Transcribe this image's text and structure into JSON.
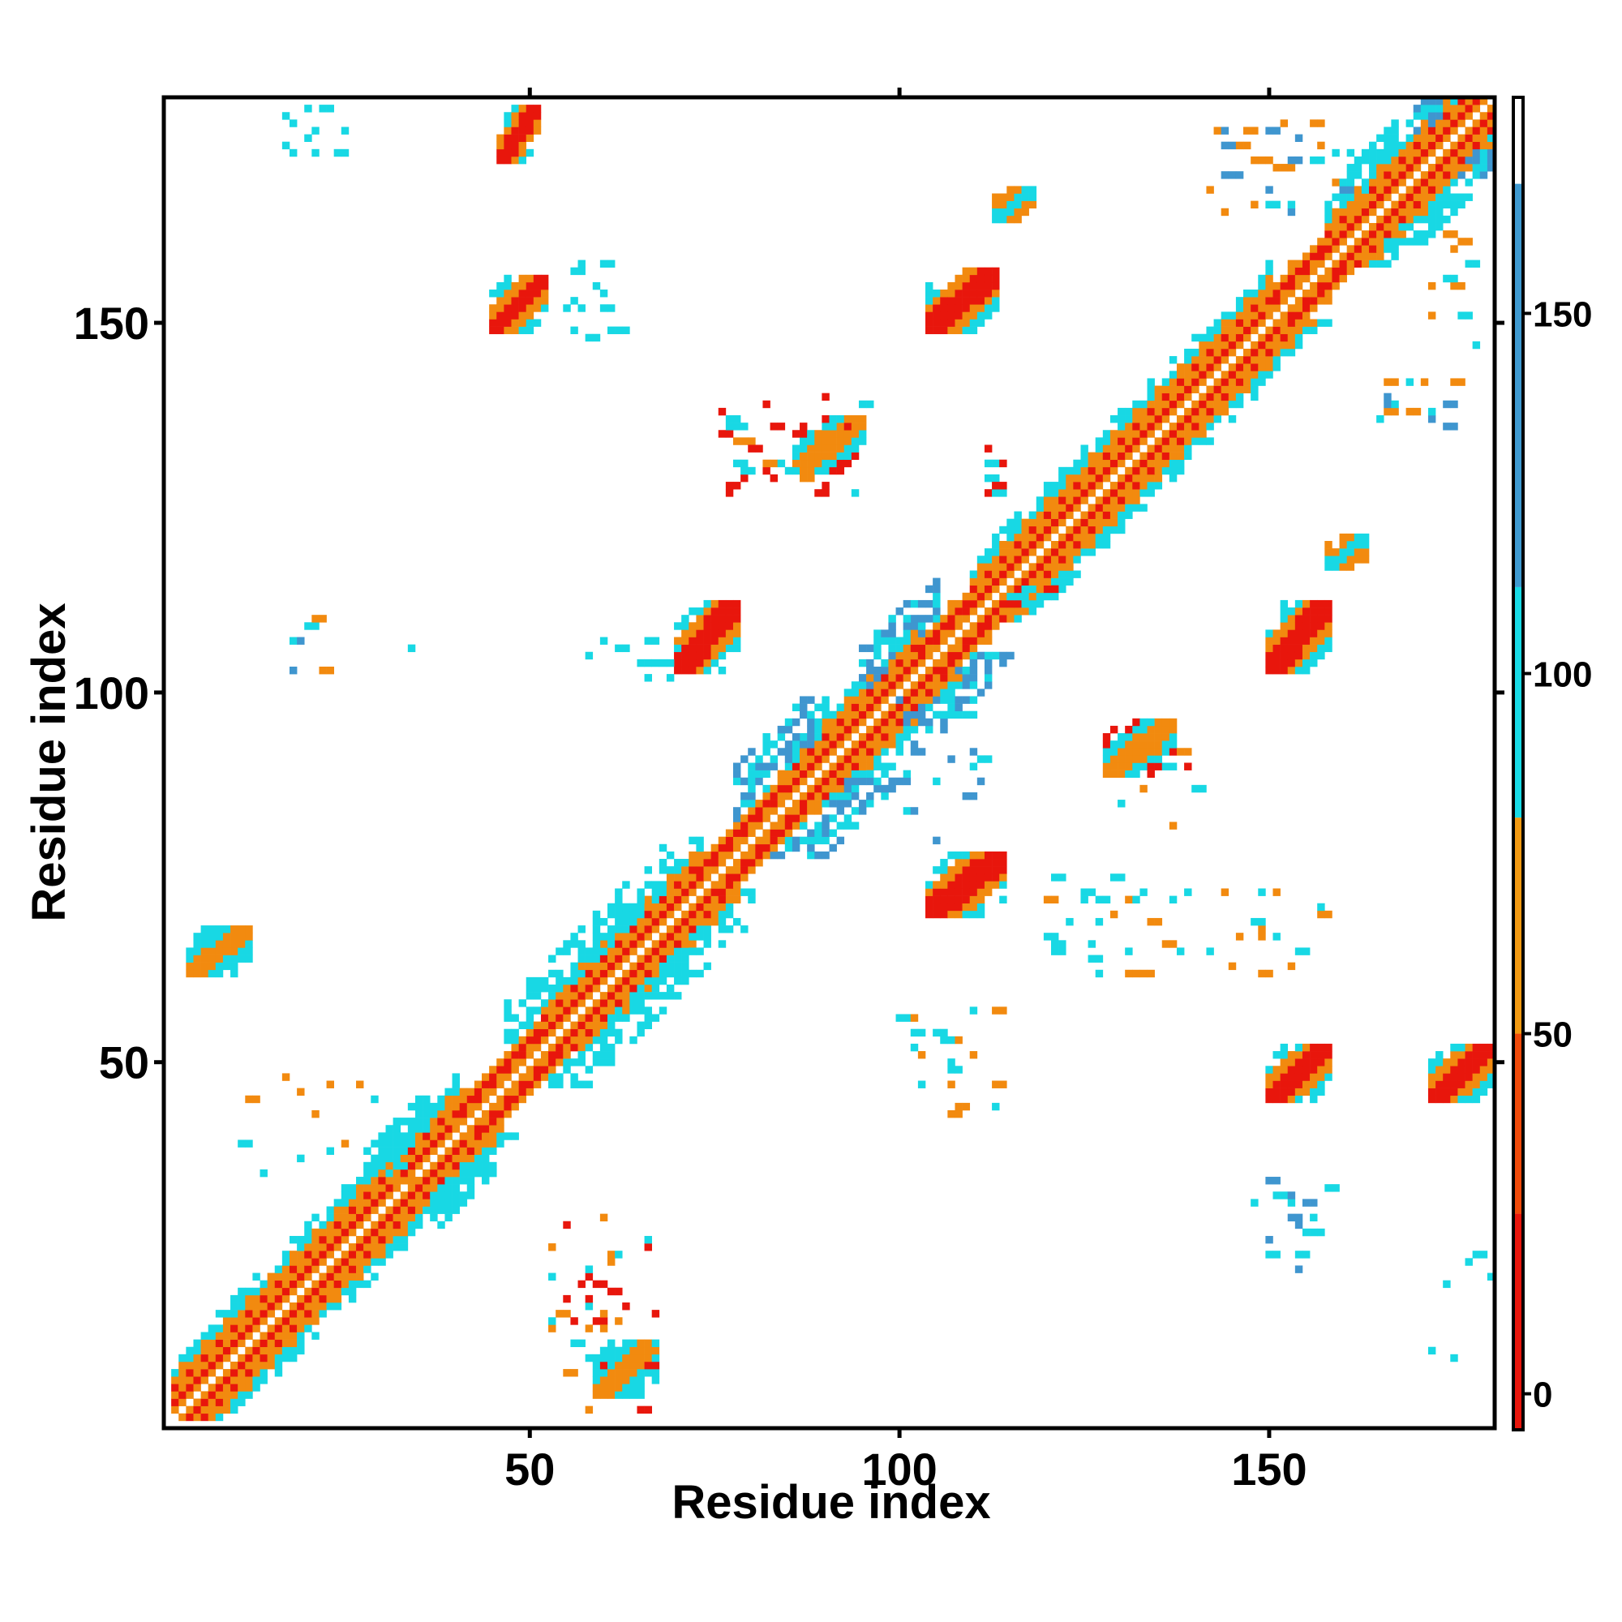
{
  "chart_data": {
    "type": "heatmap",
    "title": "",
    "xlabel": "Residue index",
    "ylabel": "Residue index",
    "xlim": [
      1,
      180
    ],
    "ylim": [
      1,
      180
    ],
    "x_ticks": [
      50,
      100,
      150
    ],
    "y_ticks": [
      50,
      100,
      150
    ],
    "grid": false,
    "legend": "colorbar-right",
    "colorbar": {
      "ticks": [
        0,
        50,
        100,
        150
      ],
      "range": [
        -5,
        180
      ],
      "bands": [
        {
          "from": -5,
          "to": 25,
          "color": "#e8160c"
        },
        {
          "from": 25,
          "to": 50,
          "color": "#f04a0a"
        },
        {
          "from": 50,
          "to": 80,
          "color": "#f39a12"
        },
        {
          "from": 80,
          "to": 112,
          "color": "#19dbe6"
        },
        {
          "from": 112,
          "to": 168,
          "color": "#3f9ad1"
        },
        {
          "from": 168,
          "to": 180,
          "color": "#ffffff"
        }
      ]
    },
    "category_colors": {
      "red": "#e8160c",
      "orange": "#f28a0f",
      "cyan": "#18d8e4",
      "blue": "#3f96cf"
    },
    "diagonal": {
      "from": 2,
      "to": 180,
      "segments": [
        {
          "from": 2,
          "to": 40,
          "pattern": "beta"
        },
        {
          "from": 40,
          "to": 52,
          "pattern": "helix"
        },
        {
          "from": 52,
          "to": 73,
          "pattern": "beta"
        },
        {
          "from": 73,
          "to": 85,
          "pattern": "helix"
        },
        {
          "from": 85,
          "to": 103,
          "pattern": "beta"
        },
        {
          "from": 103,
          "to": 110,
          "pattern": "helix"
        },
        {
          "from": 110,
          "to": 130,
          "pattern": "beta"
        },
        {
          "from": 130,
          "to": 150,
          "pattern": "beta"
        },
        {
          "from": 150,
          "to": 158,
          "pattern": "helix"
        },
        {
          "from": 158,
          "to": 180,
          "pattern": "beta"
        }
      ],
      "shoulders": [
        {
          "center": 32,
          "spread": 4,
          "color": "cyan"
        },
        {
          "center": 52,
          "spread": 5,
          "color": "cyan"
        },
        {
          "center": 64,
          "spread": 5,
          "color": "cyan"
        },
        {
          "center": 84,
          "spread": 6,
          "color": "blue"
        },
        {
          "center": 100,
          "spread": 5,
          "color": "blue"
        },
        {
          "center": 165,
          "spread": 4,
          "color": "cyan"
        },
        {
          "center": 172,
          "spread": 3,
          "color": "blue"
        }
      ]
    },
    "blocks": [
      {
        "i": [
          46,
          51
        ],
        "j": [
          172,
          179
        ],
        "colors": [
          "red",
          "orange",
          "cyan"
        ]
      },
      {
        "i": [
          45,
          52
        ],
        "j": [
          149,
          156
        ],
        "colors": [
          "red",
          "orange",
          "cyan"
        ]
      },
      {
        "i": [
          104,
          113
        ],
        "j": [
          149,
          157
        ],
        "colors": [
          "red",
          "orange",
          "cyan"
        ]
      },
      {
        "i": [
          70,
          78
        ],
        "j": [
          103,
          112
        ],
        "colors": [
          "red",
          "orange",
          "cyan"
        ]
      },
      {
        "i": [
          150,
          158
        ],
        "j": [
          103,
          112
        ],
        "colors": [
          "red",
          "orange",
          "cyan"
        ]
      },
      {
        "i": [
          104,
          114
        ],
        "j": [
          70,
          78
        ],
        "colors": [
          "red",
          "orange",
          "cyan"
        ]
      },
      {
        "i": [
          150,
          158
        ],
        "j": [
          45,
          52
        ],
        "colors": [
          "red",
          "orange",
          "cyan"
        ]
      },
      {
        "i": [
          172,
          180
        ],
        "j": [
          45,
          52
        ],
        "colors": [
          "red",
          "orange",
          "cyan"
        ]
      },
      {
        "i": [
          4,
          12
        ],
        "j": [
          62,
          68
        ],
        "colors": [
          "orange",
          "cyan"
        ]
      },
      {
        "i": [
          59,
          67
        ],
        "j": [
          5,
          12
        ],
        "colors": [
          "orange",
          "cyan"
        ]
      },
      {
        "i": [
          128,
          137
        ],
        "j": [
          89,
          96
        ],
        "colors": [
          "orange",
          "cyan",
          "red"
        ]
      },
      {
        "i": [
          86,
          95
        ],
        "j": [
          130,
          137
        ],
        "colors": [
          "orange",
          "cyan",
          "red"
        ]
      },
      {
        "i": [
          158,
          163
        ],
        "j": [
          117,
          121
        ],
        "colors": [
          "cyan",
          "orange"
        ]
      },
      {
        "i": [
          113,
          118
        ],
        "j": [
          164,
          168
        ],
        "colors": [
          "cyan",
          "orange"
        ]
      }
    ],
    "scatter_regions": [
      {
        "i": [
          17,
          25
        ],
        "j": [
          172,
          179
        ],
        "colors": [
          "cyan"
        ],
        "density": 0.12
      },
      {
        "i": [
          55,
          63
        ],
        "j": [
          148,
          158
        ],
        "colors": [
          "cyan"
        ],
        "density": 0.12
      },
      {
        "i": [
          142,
          162
        ],
        "j": [
          165,
          177
        ],
        "colors": [
          "cyan",
          "orange",
          "blue"
        ],
        "density": 0.08
      },
      {
        "i": [
          172,
          178
        ],
        "j": [
          147,
          162
        ],
        "colors": [
          "orange",
          "cyan"
        ],
        "density": 0.12
      },
      {
        "i": [
          165,
          177
        ],
        "j": [
          136,
          143
        ],
        "colors": [
          "cyan",
          "blue",
          "orange"
        ],
        "density": 0.08
      },
      {
        "i": [
          15,
          35
        ],
        "j": [
          102,
          110
        ],
        "colors": [
          "cyan",
          "orange",
          "blue"
        ],
        "density": 0.05
      },
      {
        "i": [
          55,
          70
        ],
        "j": [
          102,
          108
        ],
        "colors": [
          "cyan"
        ],
        "density": 0.1
      },
      {
        "i": [
          76,
          95
        ],
        "j": [
          127,
          140
        ],
        "colors": [
          "cyan",
          "orange",
          "red"
        ],
        "density": 0.1
      },
      {
        "i": [
          112,
          116
        ],
        "j": [
          127,
          133
        ],
        "colors": [
          "red",
          "cyan"
        ],
        "density": 0.25
      },
      {
        "i": [
          115,
          120
        ],
        "j": [
          111,
          114
        ],
        "colors": [
          "red",
          "cyan"
        ],
        "density": 0.3
      },
      {
        "i": [
          130,
          141
        ],
        "j": [
          82,
          93
        ],
        "colors": [
          "cyan",
          "orange",
          "red"
        ],
        "density": 0.08
      },
      {
        "i": [
          120,
          158
        ],
        "j": [
          62,
          75
        ],
        "colors": [
          "cyan",
          "orange"
        ],
        "density": 0.06
      },
      {
        "i": [
          8,
          35
        ],
        "j": [
          34,
          48
        ],
        "colors": [
          "cyan",
          "orange"
        ],
        "density": 0.06
      },
      {
        "i": [
          53,
          68
        ],
        "j": [
          3,
          30
        ],
        "colors": [
          "cyan",
          "orange",
          "red"
        ],
        "density": 0.08
      },
      {
        "i": [
          100,
          113
        ],
        "j": [
          42,
          57
        ],
        "colors": [
          "cyan",
          "orange"
        ],
        "density": 0.06
      },
      {
        "i": [
          148,
          158
        ],
        "j": [
          22,
          34
        ],
        "colors": [
          "cyan",
          "blue"
        ],
        "density": 0.08
      },
      {
        "i": [
          172,
          180
        ],
        "j": [
          10,
          24
        ],
        "colors": [
          "cyan"
        ],
        "density": 0.1
      },
      {
        "i": [
          100,
          112
        ],
        "j": [
          80,
          100
        ],
        "colors": [
          "cyan",
          "blue"
        ],
        "density": 0.05
      }
    ]
  }
}
